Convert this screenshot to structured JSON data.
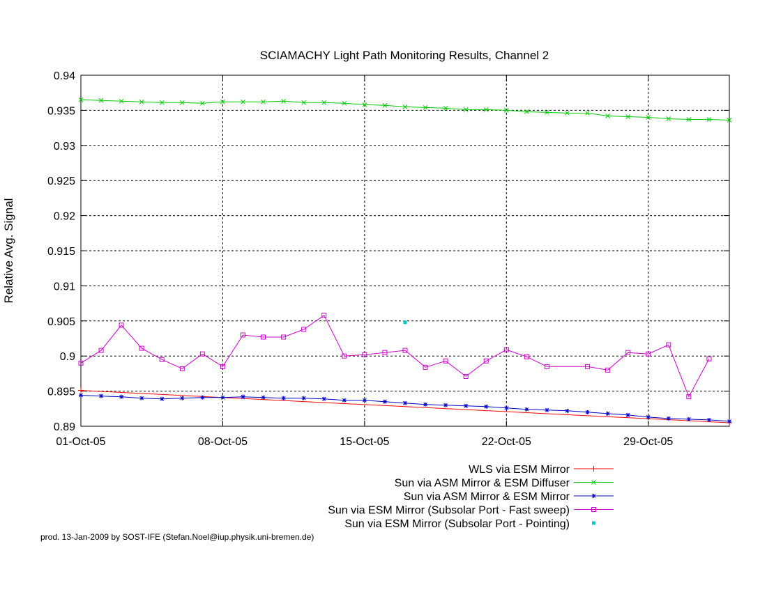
{
  "chart_data": {
    "type": "line",
    "title": "SCIAMACHY Light Path Monitoring Results, Channel 2",
    "xlabel": "",
    "ylabel": "Relative Avg. Signal",
    "xlim": [
      "2005-10-01",
      "2005-11-02"
    ],
    "ylim": [
      0.89,
      0.94
    ],
    "x_ticks": [
      "01-Oct-05",
      "08-Oct-05",
      "15-Oct-05",
      "22-Oct-05",
      "29-Oct-05"
    ],
    "y_ticks": [
      "0.89",
      "0.895",
      "0.9",
      "0.905",
      "0.91",
      "0.915",
      "0.92",
      "0.925",
      "0.93",
      "0.935",
      "0.94"
    ],
    "grid": true,
    "legend_position": "bottom-right",
    "series": [
      {
        "name": "WLS via ESM Mirror",
        "color": "#ff0000",
        "marker": "plus",
        "x": [
          "2005-10-01",
          "2005-11-02"
        ],
        "y": [
          0.8951,
          0.8905
        ]
      },
      {
        "name": "Sun via ASM Mirror & ESM Diffuser",
        "color": "#00cc00",
        "marker": "cross",
        "x": [
          "2005-10-01",
          "2005-10-02",
          "2005-10-03",
          "2005-10-04",
          "2005-10-05",
          "2005-10-06",
          "2005-10-07",
          "2005-10-08",
          "2005-10-09",
          "2005-10-10",
          "2005-10-11",
          "2005-10-12",
          "2005-10-13",
          "2005-10-14",
          "2005-10-15",
          "2005-10-16",
          "2005-10-17",
          "2005-10-18",
          "2005-10-19",
          "2005-10-20",
          "2005-10-21",
          "2005-10-22",
          "2005-10-23",
          "2005-10-24",
          "2005-10-25",
          "2005-10-26",
          "2005-10-27",
          "2005-10-28",
          "2005-10-29",
          "2005-10-30",
          "2005-10-31",
          "2005-11-01",
          "2005-11-02"
        ],
        "y": [
          0.9365,
          0.9364,
          0.9363,
          0.9362,
          0.9361,
          0.9361,
          0.936,
          0.9362,
          0.9362,
          0.9362,
          0.9363,
          0.9361,
          0.9361,
          0.936,
          0.9358,
          0.9357,
          0.9355,
          0.9354,
          0.9353,
          0.9351,
          0.9351,
          0.935,
          0.9348,
          0.9347,
          0.9346,
          0.9346,
          0.9342,
          0.9341,
          0.934,
          0.9338,
          0.9337,
          0.9337,
          0.9336
        ]
      },
      {
        "name": "Sun via ASM Mirror & ESM Mirror",
        "color": "#0000cc",
        "marker": "star",
        "x": [
          "2005-10-01",
          "2005-10-02",
          "2005-10-03",
          "2005-10-04",
          "2005-10-05",
          "2005-10-06",
          "2005-10-07",
          "2005-10-08",
          "2005-10-09",
          "2005-10-10",
          "2005-10-11",
          "2005-10-12",
          "2005-10-13",
          "2005-10-14",
          "2005-10-15",
          "2005-10-16",
          "2005-10-17",
          "2005-10-18",
          "2005-10-19",
          "2005-10-20",
          "2005-10-21",
          "2005-10-22",
          "2005-10-23",
          "2005-10-24",
          "2005-10-25",
          "2005-10-26",
          "2005-10-27",
          "2005-10-28",
          "2005-10-29",
          "2005-10-30",
          "2005-10-31",
          "2005-11-01",
          "2005-11-02"
        ],
        "y": [
          0.8944,
          0.8943,
          0.8942,
          0.894,
          0.8939,
          0.894,
          0.8941,
          0.8941,
          0.8942,
          0.8941,
          0.894,
          0.894,
          0.8939,
          0.8937,
          0.8937,
          0.8935,
          0.8933,
          0.8931,
          0.893,
          0.8929,
          0.8928,
          0.8926,
          0.8924,
          0.8923,
          0.8922,
          0.892,
          0.8918,
          0.8916,
          0.8913,
          0.8911,
          0.891,
          0.8909,
          0.8907
        ]
      },
      {
        "name": "Sun via ESM Mirror (Subsolar Port - Fast sweep)",
        "color": "#cc00cc",
        "marker": "square",
        "x": [
          "2005-10-01",
          "2005-10-02",
          "2005-10-03",
          "2005-10-04",
          "2005-10-05",
          "2005-10-06",
          "2005-10-07",
          "2005-10-08",
          "2005-10-09",
          "2005-10-10",
          "2005-10-11",
          "2005-10-12",
          "2005-10-13",
          "2005-10-14",
          "2005-10-15",
          "2005-10-16",
          "2005-10-17",
          "2005-10-18",
          "2005-10-19",
          "2005-10-20",
          "2005-10-21",
          "2005-10-22",
          "2005-10-23",
          "2005-10-24",
          "2005-10-26",
          "2005-10-27",
          "2005-10-28",
          "2005-10-29",
          "2005-10-30",
          "2005-10-31",
          "2005-11-01"
        ],
        "y": [
          0.899,
          0.9008,
          0.9044,
          0.9011,
          0.8995,
          0.8982,
          0.9003,
          0.8985,
          0.903,
          0.9027,
          0.9027,
          0.9038,
          0.9058,
          0.9,
          0.9002,
          0.9005,
          0.9008,
          0.8984,
          0.8993,
          0.8971,
          0.8993,
          0.9009,
          0.8999,
          0.8985,
          0.8985,
          0.898,
          0.9005,
          0.9003,
          0.9016,
          0.8942,
          0.8996
        ]
      },
      {
        "name": "Sun via ESM Mirror (Subsolar Port - Pointing)",
        "color": "#00cccc",
        "marker": "point",
        "x": [
          "2005-10-17"
        ],
        "y": [
          0.9048
        ]
      }
    ]
  },
  "footer": "prod. 13-Jan-2009 by SOST-IFE (Stefan.Noel@iup.physik.uni-bremen.de)"
}
